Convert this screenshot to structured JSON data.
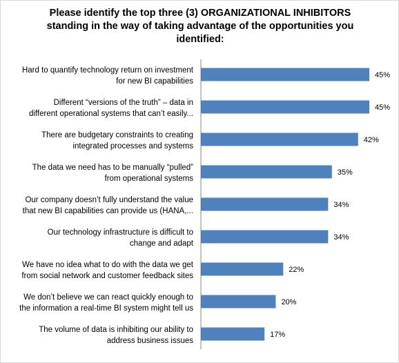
{
  "chart_data": {
    "type": "bar",
    "orientation": "horizontal",
    "title_lines": [
      "Please identify the top three (3) ORGANIZATIONAL INHIBITORS",
      "standing in the way of taking advantage of the opportunities you",
      "identified:"
    ],
    "categories": [
      [
        "Hard to quantify technology return on investment",
        "for new BI capabilities"
      ],
      [
        "Different “versions of the truth” – data in",
        "different operational systems that can’t easily..."
      ],
      [
        "There are budgetary constraints to creating",
        "integrated processes and systems"
      ],
      [
        "The data we need has to be manually “pulled”",
        "from operational systems"
      ],
      [
        "Our company doesn’t fully understand the value",
        "that new BI capabilities can provide us (HANA,..."
      ],
      [
        "Our technology infrastructure is difficult to",
        "change and adapt"
      ],
      [
        "We have no idea what to do with the data we get",
        "from social network and customer feedback sites"
      ],
      [
        "We don’t believe we can react quickly enough to",
        "the information a real-time BI system might tell us"
      ],
      [
        "The volume of data is inhibiting our ability to",
        "address business issues"
      ]
    ],
    "values": [
      45,
      45,
      42,
      35,
      34,
      34,
      22,
      20,
      17
    ],
    "value_labels": [
      "45%",
      "45%",
      "42%",
      "35%",
      "34%",
      "34%",
      "22%",
      "20%",
      "17%"
    ],
    "unit": "%",
    "xlim": [
      0,
      45
    ],
    "bar_color": "#4f81bd",
    "grid": false,
    "legend": "none",
    "axis_line": "left"
  }
}
